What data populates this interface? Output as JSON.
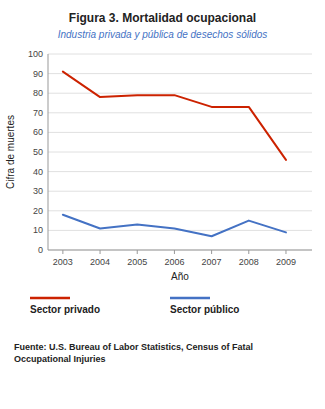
{
  "chart_data": {
    "type": "line",
    "title": "Figura 3. Mortalidad ocupacional",
    "subtitle": "Industria privada y pública de desechos sólidos",
    "x": [
      2003,
      2004,
      2005,
      2006,
      2007,
      2008,
      2009
    ],
    "series": [
      {
        "name": "Sector privado",
        "color": "#cc2200",
        "values": [
          91,
          78,
          79,
          79,
          73,
          73,
          46
        ]
      },
      {
        "name": "Sector público",
        "color": "#4472c4",
        "values": [
          18,
          11,
          13,
          11,
          7,
          15,
          9
        ]
      }
    ],
    "xlabel": "Año",
    "ylabel": "Cifra de muertes",
    "xlim": [
      2002.6,
      2009.7
    ],
    "xticks": [
      2003,
      2004,
      2005,
      2006,
      2007,
      2008,
      2009
    ],
    "ylim": [
      0,
      100
    ],
    "yticks": [
      0,
      10,
      20,
      30,
      40,
      50,
      60,
      70,
      80,
      90,
      100
    ],
    "grid": true,
    "legend": "bottom",
    "annotations": [
      "Fuente: U.S. Bureau of Labor Statistics, Census of Fatal\nOccupational Injuries"
    ]
  }
}
